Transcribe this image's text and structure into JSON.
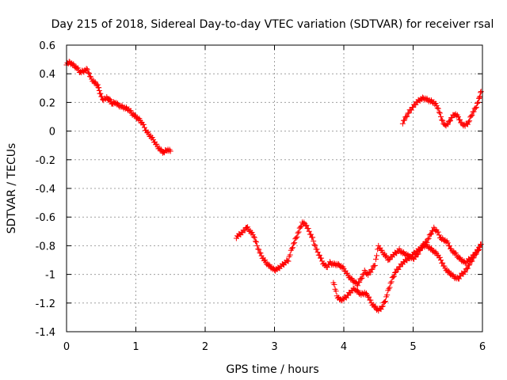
{
  "chart_data": {
    "type": "scatter",
    "title": "Day 215 of 2018, Sidereal Day-to-day VTEC variation (SDTVAR) for receiver rsal",
    "xlabel": "GPS time / hours",
    "ylabel": "SDTVAR / TECUs",
    "xlim": [
      0,
      6
    ],
    "ylim": [
      -1.4,
      0.6
    ],
    "x_ticks": [
      "0",
      "1",
      "2",
      "3",
      "4",
      "5",
      "6"
    ],
    "y_ticks": [
      "-1.4",
      "-1.2",
      "-1",
      "-0.8",
      "-0.6",
      "-0.4",
      "-0.2",
      "0",
      "0.2",
      "0.4",
      "0.6"
    ],
    "grid": true,
    "legend": "none",
    "marker": "plus",
    "color": "#ff0000",
    "series": [
      {
        "points": [
          [
            0.0,
            0.47
          ],
          [
            0.05,
            0.48
          ],
          [
            0.1,
            0.46
          ],
          [
            0.15,
            0.44
          ],
          [
            0.2,
            0.41
          ],
          [
            0.25,
            0.42
          ],
          [
            0.3,
            0.43
          ],
          [
            0.35,
            0.37
          ],
          [
            0.4,
            0.34
          ],
          [
            0.45,
            0.32
          ],
          [
            0.48,
            0.27
          ],
          [
            0.52,
            0.22
          ],
          [
            0.58,
            0.23
          ],
          [
            0.62,
            0.22
          ],
          [
            0.66,
            0.19
          ],
          [
            0.7,
            0.2
          ],
          [
            0.75,
            0.18
          ],
          [
            0.8,
            0.17
          ],
          [
            0.85,
            0.16
          ],
          [
            0.9,
            0.15
          ],
          [
            0.95,
            0.12
          ],
          [
            1.0,
            0.1
          ],
          [
            1.05,
            0.08
          ],
          [
            1.1,
            0.05
          ],
          [
            1.15,
            0.0
          ],
          [
            1.2,
            -0.03
          ],
          [
            1.25,
            -0.06
          ],
          [
            1.3,
            -0.1
          ],
          [
            1.35,
            -0.13
          ],
          [
            1.4,
            -0.15
          ],
          [
            1.45,
            -0.13
          ],
          [
            1.5,
            -0.14
          ]
        ]
      },
      {
        "points": [
          [
            2.45,
            -0.74
          ],
          [
            2.5,
            -0.72
          ],
          [
            2.55,
            -0.7
          ],
          [
            2.6,
            -0.67
          ],
          [
            2.65,
            -0.7
          ],
          [
            2.7,
            -0.73
          ],
          [
            2.75,
            -0.8
          ],
          [
            2.8,
            -0.86
          ],
          [
            2.85,
            -0.9
          ],
          [
            2.9,
            -0.93
          ],
          [
            2.95,
            -0.95
          ],
          [
            3.0,
            -0.97
          ],
          [
            3.05,
            -0.96
          ],
          [
            3.1,
            -0.94
          ],
          [
            3.15,
            -0.92
          ],
          [
            3.2,
            -0.9
          ],
          [
            3.25,
            -0.82
          ],
          [
            3.3,
            -0.76
          ],
          [
            3.35,
            -0.7
          ],
          [
            3.4,
            -0.64
          ],
          [
            3.45,
            -0.65
          ],
          [
            3.5,
            -0.7
          ],
          [
            3.55,
            -0.75
          ],
          [
            3.6,
            -0.82
          ],
          [
            3.65,
            -0.87
          ],
          [
            3.7,
            -0.92
          ],
          [
            3.75,
            -0.95
          ],
          [
            3.8,
            -0.92
          ],
          [
            3.85,
            -0.93
          ],
          [
            3.9,
            -0.93
          ],
          [
            3.95,
            -0.94
          ],
          [
            4.0,
            -0.96
          ],
          [
            4.05,
            -1.0
          ],
          [
            4.1,
            -1.03
          ],
          [
            4.15,
            -1.05
          ],
          [
            4.2,
            -1.07
          ],
          [
            4.25,
            -1.03
          ],
          [
            4.3,
            -0.98
          ],
          [
            4.35,
            -1.0
          ],
          [
            4.4,
            -0.97
          ],
          [
            4.45,
            -0.93
          ],
          [
            4.5,
            -0.8
          ],
          [
            4.55,
            -0.84
          ],
          [
            4.6,
            -0.87
          ],
          [
            4.65,
            -0.9
          ],
          [
            4.7,
            -0.87
          ],
          [
            4.75,
            -0.85
          ],
          [
            4.8,
            -0.83
          ],
          [
            4.85,
            -0.85
          ],
          [
            4.9,
            -0.86
          ],
          [
            4.95,
            -0.88
          ],
          [
            5.0,
            -0.89
          ],
          [
            5.05,
            -0.87
          ],
          [
            5.1,
            -0.83
          ],
          [
            5.15,
            -0.79
          ],
          [
            5.2,
            -0.77
          ],
          [
            5.25,
            -0.72
          ],
          [
            5.3,
            -0.68
          ],
          [
            5.35,
            -0.7
          ],
          [
            5.4,
            -0.75
          ],
          [
            5.45,
            -0.76
          ],
          [
            5.5,
            -0.78
          ],
          [
            5.55,
            -0.83
          ],
          [
            5.6,
            -0.85
          ],
          [
            5.65,
            -0.88
          ],
          [
            5.7,
            -0.9
          ],
          [
            5.75,
            -0.92
          ],
          [
            5.8,
            -0.9
          ],
          [
            5.85,
            -0.88
          ],
          [
            5.9,
            -0.85
          ],
          [
            5.95,
            -0.82
          ],
          [
            5.98,
            -0.79
          ]
        ]
      },
      {
        "points": [
          [
            3.85,
            -1.05
          ],
          [
            3.9,
            -1.15
          ],
          [
            3.95,
            -1.18
          ],
          [
            4.0,
            -1.17
          ],
          [
            4.05,
            -1.15
          ],
          [
            4.1,
            -1.12
          ],
          [
            4.15,
            -1.1
          ],
          [
            4.2,
            -1.12
          ],
          [
            4.25,
            -1.14
          ],
          [
            4.3,
            -1.13
          ],
          [
            4.35,
            -1.15
          ],
          [
            4.4,
            -1.2
          ],
          [
            4.45,
            -1.23
          ],
          [
            4.5,
            -1.25
          ],
          [
            4.55,
            -1.23
          ],
          [
            4.6,
            -1.18
          ],
          [
            4.65,
            -1.1
          ],
          [
            4.7,
            -1.03
          ],
          [
            4.75,
            -0.98
          ],
          [
            4.8,
            -0.95
          ],
          [
            4.85,
            -0.92
          ],
          [
            4.9,
            -0.9
          ],
          [
            4.95,
            -0.88
          ],
          [
            5.0,
            -0.86
          ],
          [
            5.05,
            -0.84
          ],
          [
            5.1,
            -0.82
          ],
          [
            5.15,
            -0.8
          ],
          [
            5.2,
            -0.8
          ],
          [
            5.25,
            -0.82
          ],
          [
            5.3,
            -0.84
          ],
          [
            5.35,
            -0.86
          ],
          [
            5.4,
            -0.9
          ],
          [
            5.45,
            -0.95
          ],
          [
            5.5,
            -0.98
          ],
          [
            5.55,
            -1.0
          ],
          [
            5.6,
            -1.02
          ],
          [
            5.65,
            -1.03
          ],
          [
            5.7,
            -1.0
          ],
          [
            5.75,
            -0.98
          ],
          [
            5.8,
            -0.94
          ],
          [
            5.85,
            -0.9
          ],
          [
            5.9,
            -0.86
          ],
          [
            5.95,
            -0.82
          ]
        ]
      },
      {
        "points": [
          [
            4.85,
            0.06
          ],
          [
            4.9,
            0.1
          ],
          [
            4.95,
            0.14
          ],
          [
            5.0,
            0.17
          ],
          [
            5.05,
            0.2
          ],
          [
            5.1,
            0.22
          ],
          [
            5.15,
            0.23
          ],
          [
            5.2,
            0.22
          ],
          [
            5.25,
            0.21
          ],
          [
            5.3,
            0.2
          ],
          [
            5.35,
            0.17
          ],
          [
            5.4,
            0.1
          ],
          [
            5.45,
            0.04
          ],
          [
            5.5,
            0.05
          ],
          [
            5.55,
            0.09
          ],
          [
            5.6,
            0.12
          ],
          [
            5.65,
            0.1
          ],
          [
            5.7,
            0.05
          ],
          [
            5.75,
            0.04
          ],
          [
            5.8,
            0.06
          ],
          [
            5.85,
            0.12
          ],
          [
            5.9,
            0.16
          ],
          [
            5.95,
            0.22
          ],
          [
            5.98,
            0.28
          ]
        ]
      }
    ]
  }
}
